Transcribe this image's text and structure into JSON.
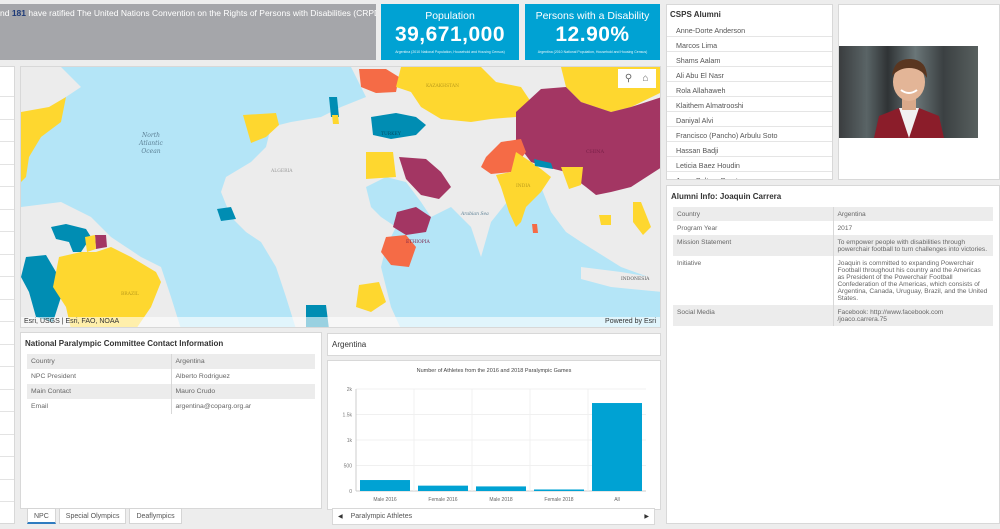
{
  "banner": {
    "prefix": "nd ",
    "count": "181",
    "suffix": " have ratified The United Nations Convention on the Rights of Persons with Disabilities (CRPD)"
  },
  "indicators": [
    {
      "title": "Population",
      "value": "39,671,000",
      "source": "Argentina (2010 National Population, Household and Housing Census)"
    },
    {
      "title": "Persons with a Disability",
      "value": "12.90%",
      "source": "Argentina (2010 National Population, Household and Housing Census)"
    }
  ],
  "colors": {
    "accent": "#00a2d3",
    "banner_bg": "#a5a6aa",
    "map_yellow": "#fed72f",
    "map_teal": "#008db3",
    "map_purple": "#a33663",
    "map_orange": "#f56b46",
    "ocean": "#b4e5f7",
    "land": "#ececec"
  },
  "map": {
    "labels": {
      "ocean_north_atlantic": "North Atlantic Ocean",
      "caribbean": "Caribbean Sea",
      "arabian": "Arabian Sea",
      "countries": [
        "GERMANY",
        "FRANCE",
        "SPAIN",
        "ITALY",
        "ALGERIA",
        "LIBYA",
        "MALI",
        "NIGER",
        "CHAD",
        "NIGERIA",
        "DR CONGO",
        "ANGOLA",
        "COLOMBIA",
        "VENEZUELA",
        "BRAZIL",
        "BOLIVIA",
        "PERU",
        "UKRAINE",
        "KAZAKHSTAN",
        "MONGOLIA",
        "TURKEY",
        "GREECE",
        "IRAN",
        "EGYPT",
        "SAUDI ARABIA",
        "SUDAN",
        "ETHIOPIA",
        "TANZANIA",
        "ZAMBIA",
        "INDIA",
        "CHINA",
        "MYANMAR (BURMA)",
        "INDONESIA"
      ]
    },
    "search_icon": "magnifier",
    "home_icon": "house",
    "attribution": "Esri, USGS | Esri, FAO, NOAA",
    "powered_by": "Powered by Esri"
  },
  "npc": {
    "title": "National Paralympic Committee Contact Information",
    "rows": [
      {
        "label": "Country",
        "value": "Argentina"
      },
      {
        "label": "NPC President",
        "value": "Alberto Rodriguez"
      },
      {
        "label": "Main Contact",
        "value": "Mauro Crudo"
      },
      {
        "label": "Email",
        "value": "argentina@coparg.org.ar"
      }
    ]
  },
  "tabs": [
    {
      "label": "NPC",
      "active": true
    },
    {
      "label": "Special Olympics",
      "active": false
    },
    {
      "label": "Deaflympics",
      "active": false
    }
  ],
  "country_header": "Argentina",
  "chart_data": {
    "type": "bar",
    "title": "Number of Athletes from the 2016 and 2018 Paralympic Games",
    "categories": [
      "Male 2016",
      "Female 2016",
      "Male 2018",
      "Female 2018",
      "All"
    ],
    "values": [
      215,
      105,
      90,
      30,
      1725
    ],
    "xlabel": "",
    "ylabel": "",
    "ylim": [
      0,
      2000
    ],
    "yticks": [
      "0",
      "500",
      "1k",
      "1.5k",
      "2k"
    ],
    "grid": true,
    "color": "#00a2d3"
  },
  "gallery": {
    "label": "Paralympic Athletes",
    "prev": "◀",
    "next": "▶"
  },
  "alumni": {
    "title": "CSPS Alumni",
    "items": [
      "Anne-Dorte Anderson",
      "Marcos Lima",
      "Shams Aalam",
      "Ali Abu El Nasr",
      "Rola Allahaweh",
      "Klaithem Almatrooshi",
      "Daniyal Alvi",
      "Francisco (Pancho) Arbulu Soto",
      "Hassan Badji",
      "Leticia Baez Houdin",
      "Jorge Beltran Puerta"
    ]
  },
  "alumni_info": {
    "title": "Alumni Info: Joaquin Carrera",
    "rows": [
      {
        "label": "Country",
        "value": "Argentina"
      },
      {
        "label": "Program Year",
        "value": "2017"
      },
      {
        "label": "Mission Statement",
        "value": "To empower people with disabilities through powerchair football to turn challenges into victories."
      },
      {
        "label": "Initiative",
        "value": "Joaquin is committed to expanding Powerchair Football throughout his country and the Americas as President of the Powerchair Football Confederation of the Americas, which consists of Argentina, Canada, Uruguay, Brazil, and the United States."
      },
      {
        "label": "Social Media",
        "value": "Facebook: http://www.facebook.com /joaco.carrera.75"
      }
    ]
  }
}
